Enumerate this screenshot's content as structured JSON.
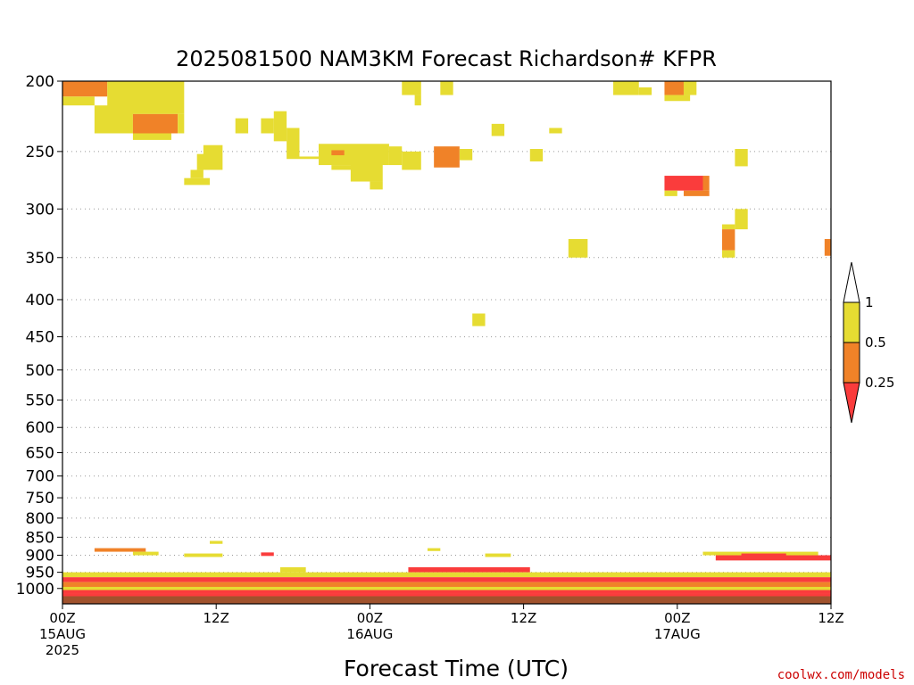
{
  "chart_data": {
    "type": "heatmap",
    "title": "2025081500 NAM3KM Forecast Richardson# KFPR",
    "xlabel": "Forecast Time (UTC)",
    "ylabel": "",
    "x_unit": "forecast hour",
    "xlim": [
      0,
      60
    ],
    "y_scale": "log",
    "ylim": [
      1050,
      200
    ],
    "y_ticks": [
      200,
      250,
      300,
      350,
      400,
      450,
      500,
      550,
      600,
      650,
      700,
      750,
      800,
      850,
      900,
      950,
      1000
    ],
    "x_ticks": [
      {
        "hour": 0,
        "lines": [
          "00Z",
          "15AUG",
          "2025"
        ]
      },
      {
        "hour": 12,
        "lines": [
          "12Z"
        ]
      },
      {
        "hour": 24,
        "lines": [
          "00Z",
          "16AUG"
        ]
      },
      {
        "hour": 36,
        "lines": [
          "12Z"
        ]
      },
      {
        "hour": 48,
        "lines": [
          "00Z",
          "17AUG"
        ]
      },
      {
        "hour": 60,
        "lines": [
          "12Z"
        ]
      }
    ],
    "grid": true,
    "legend": "colorbar-right",
    "colorbar": {
      "ticks": [
        "1",
        "0.5",
        "0.25"
      ],
      "colors": {
        "white": "#ffffff",
        "yellow": "#e6dc32",
        "orange": "#f08228",
        "red": "#fa3c3c",
        "ground": "#a0522d"
      }
    },
    "cells": [
      [
        0.0,
        3.5,
        200,
        210,
        "o"
      ],
      [
        0.0,
        2.5,
        210,
        216,
        "y"
      ],
      [
        3.5,
        9.5,
        200,
        222,
        "y"
      ],
      [
        2.5,
        5.5,
        216,
        236,
        "y"
      ],
      [
        5.5,
        9.0,
        222,
        236,
        "o"
      ],
      [
        9.0,
        9.5,
        222,
        236,
        "y"
      ],
      [
        5.5,
        8.5,
        236,
        241,
        "y"
      ],
      [
        13.5,
        14.5,
        225,
        236,
        "y"
      ],
      [
        15.5,
        16.5,
        225,
        236,
        "y"
      ],
      [
        16.5,
        17.5,
        220,
        242,
        "y"
      ],
      [
        17.5,
        18.5,
        232,
        256,
        "y"
      ],
      [
        18.5,
        20.0,
        254,
        256,
        "y"
      ],
      [
        20.0,
        25.5,
        244,
        261,
        "y"
      ],
      [
        21.0,
        22.0,
        249,
        253,
        "o"
      ],
      [
        21.0,
        23.0,
        261,
        265,
        "y"
      ],
      [
        22.5,
        25.0,
        250,
        275,
        "y"
      ],
      [
        24.0,
        25.0,
        275,
        282,
        "y"
      ],
      [
        25.5,
        26.5,
        246,
        261,
        "y"
      ],
      [
        26.5,
        28.0,
        250,
        265,
        "y"
      ],
      [
        11.0,
        12.5,
        245,
        265,
        "y"
      ],
      [
        10.5,
        11.5,
        252,
        265,
        "y"
      ],
      [
        10.0,
        11.0,
        265,
        272,
        "y"
      ],
      [
        9.5,
        11.5,
        272,
        278,
        "y"
      ],
      [
        26.5,
        28.0,
        200,
        209,
        "y"
      ],
      [
        27.5,
        28.0,
        209,
        216,
        "y"
      ],
      [
        29.5,
        30.5,
        200,
        209,
        "y"
      ],
      [
        29.0,
        31.0,
        246,
        263,
        "o"
      ],
      [
        31.0,
        32.0,
        248,
        257,
        "y"
      ],
      [
        33.5,
        34.5,
        229,
        238,
        "y"
      ],
      [
        36.5,
        37.5,
        248,
        258,
        "y"
      ],
      [
        38.0,
        39.0,
        232,
        236,
        "y"
      ],
      [
        39.5,
        41.0,
        330,
        350,
        "y"
      ],
      [
        43.0,
        45.0,
        200,
        209,
        "y"
      ],
      [
        45.0,
        46.0,
        204,
        209,
        "y"
      ],
      [
        47.0,
        48.5,
        200,
        209,
        "o"
      ],
      [
        47.0,
        49.0,
        209,
        213,
        "y"
      ],
      [
        48.5,
        49.5,
        200,
        209,
        "y"
      ],
      [
        47.0,
        50.0,
        270,
        283,
        "r"
      ],
      [
        47.0,
        48.0,
        283,
        288,
        "y"
      ],
      [
        48.5,
        50.5,
        283,
        288,
        "o"
      ],
      [
        50.0,
        50.5,
        270,
        283,
        "o"
      ],
      [
        52.5,
        53.5,
        248,
        262,
        "y"
      ],
      [
        52.5,
        53.5,
        300,
        320,
        "y"
      ],
      [
        51.5,
        52.5,
        315,
        320,
        "y"
      ],
      [
        51.5,
        52.5,
        320,
        342,
        "o"
      ],
      [
        51.5,
        52.5,
        342,
        350,
        "y"
      ],
      [
        59.5,
        60.0,
        330,
        348,
        "o"
      ],
      [
        32.0,
        33.0,
        418,
        435,
        "y"
      ],
      [
        2.5,
        6.5,
        880,
        890,
        "o"
      ],
      [
        5.5,
        7.5,
        890,
        900,
        "y"
      ],
      [
        9.5,
        12.5,
        895,
        905,
        "y"
      ],
      [
        11.5,
        12.5,
        860,
        868,
        "y"
      ],
      [
        15.5,
        16.5,
        892,
        902,
        "r"
      ],
      [
        28.5,
        29.5,
        880,
        888,
        "y"
      ],
      [
        33.0,
        35.0,
        895,
        905,
        "y"
      ],
      [
        51.0,
        60.0,
        900,
        915,
        "r"
      ],
      [
        50.0,
        59.0,
        890,
        900,
        "y"
      ],
      [
        53.0,
        56.5,
        895,
        905,
        "r"
      ],
      [
        17.0,
        19.0,
        935,
        950,
        "y"
      ],
      [
        27.0,
        36.5,
        935,
        950,
        "r"
      ],
      [
        0.0,
        60.0,
        950,
        965,
        "y"
      ],
      [
        0.0,
        60.0,
        965,
        980,
        "r"
      ],
      [
        0.0,
        60.0,
        980,
        995,
        "o"
      ],
      [
        0.0,
        60.0,
        995,
        1005,
        "y"
      ],
      [
        0.0,
        60.0,
        1005,
        1015,
        "r"
      ],
      [
        0.0,
        60.0,
        1015,
        1025,
        "r"
      ],
      [
        0.0,
        60.0,
        1025,
        1050,
        "g"
      ]
    ]
  },
  "credit": "coolwx.com/models"
}
